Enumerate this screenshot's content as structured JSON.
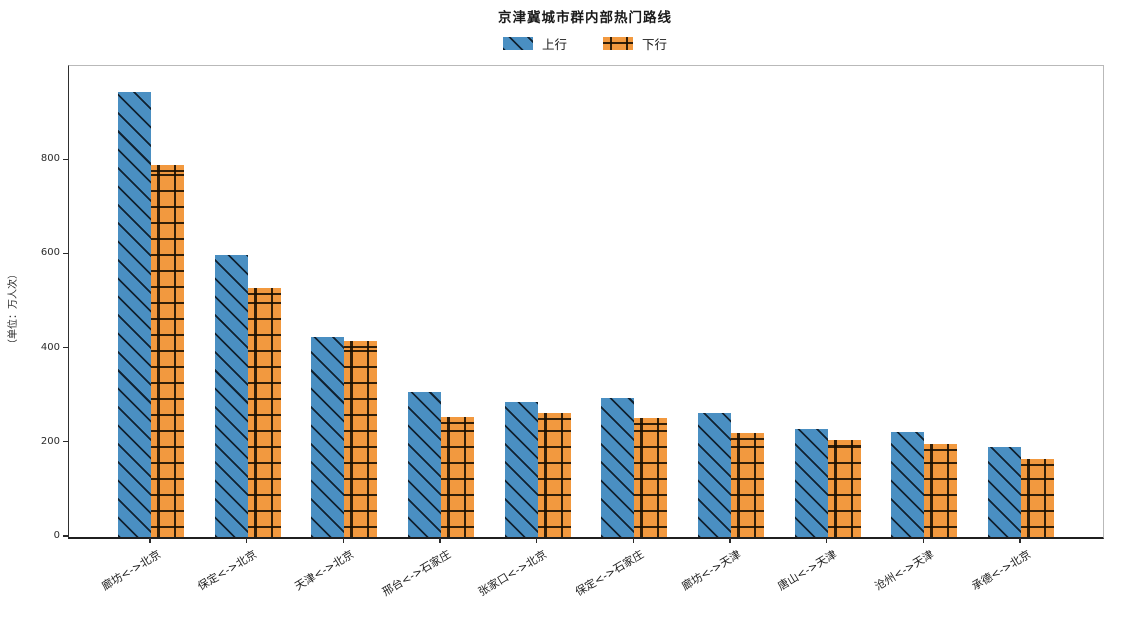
{
  "chart_data": {
    "type": "bar",
    "title": "京津冀城市群内部热门路线",
    "xlabel": "",
    "ylabel": "（单位：万人次）",
    "categories": [
      "廊坊<->北京",
      "保定<->北京",
      "天津<->北京",
      "邢台<->石家庄",
      "张家口<->北京",
      "保定<->石家庄",
      "廊坊<->天津",
      "唐山<->天津",
      "沧州<->天津",
      "承德<->北京"
    ],
    "series": [
      {
        "name": "上行",
        "color": "#4a8fc2",
        "hatch": "diagonal",
        "values": [
          944,
          598,
          425,
          308,
          287,
          296,
          264,
          230,
          223,
          191
        ]
      },
      {
        "name": "下行",
        "color": "#f2993f",
        "hatch": "cross",
        "values": [
          789,
          528,
          417,
          255,
          264,
          253,
          221,
          206,
          198,
          166
        ]
      }
    ],
    "ylim": [
      0,
      1000
    ],
    "yticks": [
      0,
      200,
      400,
      600,
      800
    ],
    "grid": false,
    "legend_position": "top-center",
    "x_tick_rotation_deg": 31
  }
}
